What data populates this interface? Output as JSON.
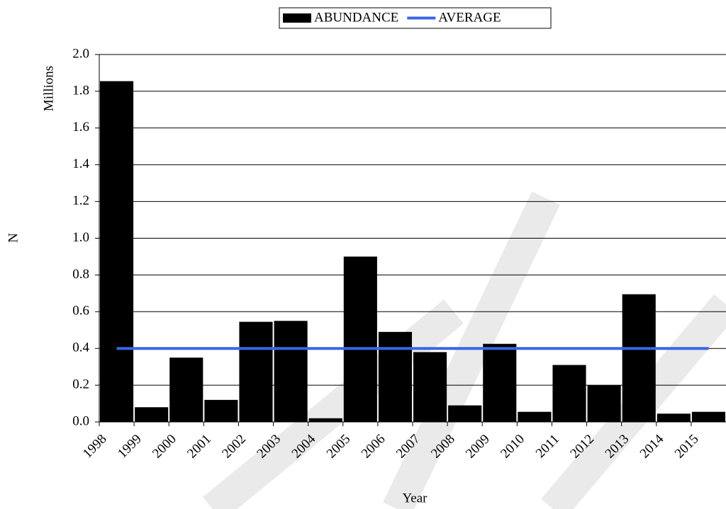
{
  "chart_data": {
    "type": "bar",
    "x_label": "Year",
    "y_label": "N",
    "y_unit": "Millions",
    "categories": [
      "1998",
      "1999",
      "2000",
      "2001",
      "2002",
      "2003",
      "2004",
      "2005",
      "2006",
      "2007",
      "2008",
      "2009",
      "2010",
      "2011",
      "2012",
      "2013",
      "2014",
      "2015"
    ],
    "series": [
      {
        "name": "ABUNDANCE",
        "color": "#000000",
        "type": "bar",
        "values": [
          1.855,
          0.08,
          0.35,
          0.12,
          0.545,
          0.55,
          0.02,
          0.9,
          0.49,
          0.38,
          0.09,
          0.425,
          0.055,
          0.31,
          0.2,
          0.695,
          0.045,
          0.055
        ]
      },
      {
        "name": "AVERAGE",
        "color": "#3a66e6",
        "type": "line",
        "values": [
          0.4,
          0.4,
          0.4,
          0.4,
          0.4,
          0.4,
          0.4,
          0.4,
          0.4,
          0.4,
          0.4,
          0.4,
          0.4,
          0.4,
          0.4,
          0.4,
          0.4,
          0.4
        ]
      }
    ],
    "ylim": [
      0,
      2
    ],
    "yticks": [
      {
        "value": 0,
        "label": "0.0"
      },
      {
        "value": 0.2,
        "label": "0.2"
      },
      {
        "value": 0.4,
        "label": "0.4"
      },
      {
        "value": 0.6,
        "label": "0.6"
      },
      {
        "value": 0.8,
        "label": "0.8"
      },
      {
        "value": 1,
        "label": "1.0"
      },
      {
        "value": 1.2,
        "label": "1.2"
      },
      {
        "value": 1.4,
        "label": "1.4"
      },
      {
        "value": 1.6,
        "label": "1.6"
      },
      {
        "value": 1.8,
        "label": "1.8"
      },
      {
        "value": 2,
        "label": "2.0"
      }
    ],
    "grid": true,
    "legend": "top"
  }
}
